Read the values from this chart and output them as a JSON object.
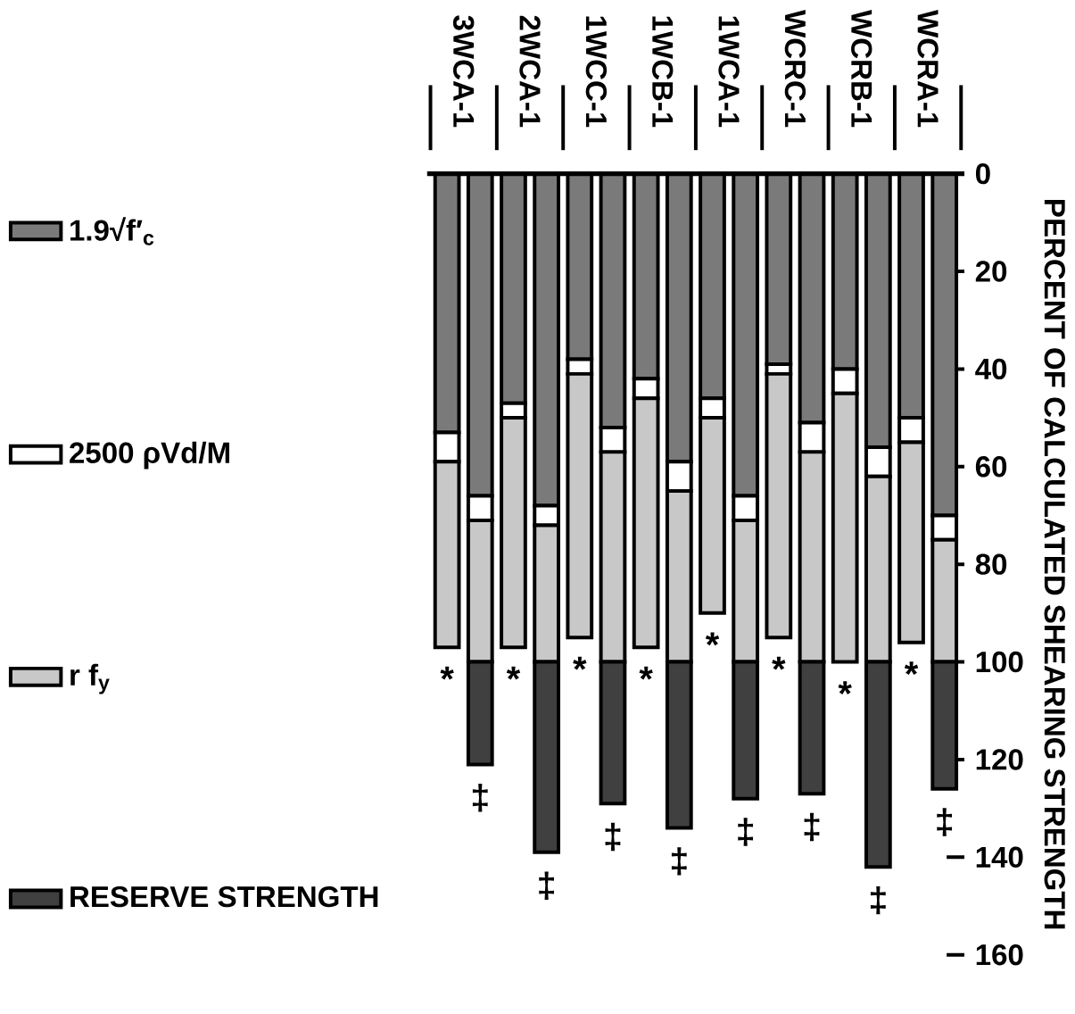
{
  "chart_data": {
    "type": "bar",
    "stacked": true,
    "ylabel": "PERCENT OF CALCULATED SHEARING STRENGTH",
    "categories": [
      "3WCA-1",
      null,
      "2WCA-1",
      null,
      "1WCC-1",
      null,
      "1WCB-1",
      null,
      "1WCA-1",
      null,
      "WCRC-1",
      null,
      "WCRB-1",
      null,
      "WCRA-1",
      null
    ],
    "ylim": [
      160,
      0
    ],
    "yticks": [
      0,
      20,
      40,
      60,
      80,
      100,
      120,
      140,
      160
    ],
    "legend": "left",
    "series": [
      {
        "name": "1.9√f′$_{c}$",
        "color": "#7a7a7a",
        "values": [
          53,
          66,
          47,
          68,
          38,
          52,
          42,
          59,
          46,
          66,
          39,
          51,
          40,
          56,
          50,
          70
        ]
      },
      {
        "name": "2500 ρVd/M",
        "color": "#ffffff",
        "values": [
          6,
          5,
          3,
          4,
          3,
          5,
          4,
          6,
          4,
          5,
          2,
          6,
          5,
          6,
          5,
          5
        ]
      },
      {
        "name": "r f$_{y}$",
        "color": "#c8c8c8",
        "values": [
          38,
          29,
          47,
          28,
          54,
          43,
          51,
          35,
          40,
          29,
          54,
          43,
          55,
          38,
          41,
          25
        ],
        "value_labels": [
          "*",
          null,
          "*",
          null,
          "*",
          null,
          "*",
          null,
          "*",
          null,
          "*",
          null,
          "*",
          null,
          "*",
          null
        ]
      },
      {
        "name": "RESERVE STRENGTH",
        "color": "#404040",
        "values": [
          null,
          21,
          null,
          39,
          null,
          29,
          null,
          34,
          null,
          28,
          null,
          27,
          null,
          42,
          null,
          26
        ],
        "value_labels": [
          null,
          "‡",
          null,
          "‡",
          null,
          "‡",
          null,
          "‡",
          null,
          "‡",
          null,
          "‡",
          null,
          "‡",
          null,
          "‡"
        ]
      }
    ]
  }
}
